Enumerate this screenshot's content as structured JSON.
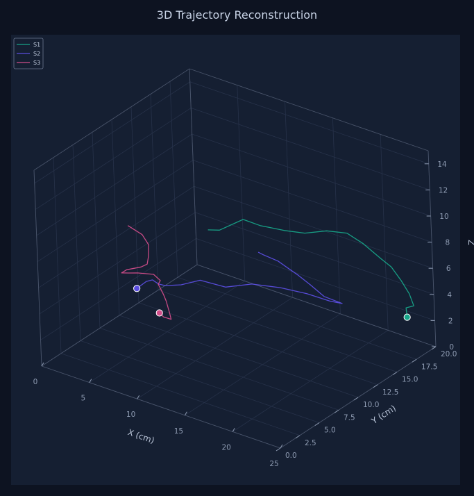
{
  "chart_data": {
    "type": "line",
    "subtype": "3d-trajectory",
    "title": "3D Trajectory Reconstruction",
    "xlabel": "X (cm)",
    "ylabel": "Y (cm)",
    "zlabel": "Z",
    "xlim": [
      0,
      25
    ],
    "ylim": [
      0,
      20
    ],
    "zlim": [
      0,
      15
    ],
    "x_ticks": [
      0,
      5,
      10,
      15,
      20,
      25
    ],
    "y_ticks": [
      "0.0",
      "2.5",
      "5.0",
      "7.5",
      "10.0",
      "12.5",
      "15.0",
      "17.5",
      "20.0"
    ],
    "z_ticks": [
      0,
      2,
      4,
      6,
      8,
      10,
      12,
      14
    ],
    "grid": true,
    "legend_position": "top-left",
    "series": [
      {
        "name": "S1",
        "color": "#17a589",
        "points": [
          [
            10.6,
            9.0,
            9.6
          ],
          [
            10.3,
            10.8,
            8.8
          ],
          [
            11.5,
            12.4,
            9.3
          ],
          [
            12.6,
            13.2,
            8.8
          ],
          [
            13.8,
            14.8,
            8.1
          ],
          [
            15.2,
            15.7,
            7.9
          ],
          [
            16.6,
            16.8,
            8.0
          ],
          [
            17.8,
            17.9,
            7.7
          ],
          [
            18.9,
            18.6,
            6.9
          ],
          [
            19.9,
            19.6,
            5.6
          ],
          [
            20.6,
            20.0,
            5.0
          ],
          [
            21.6,
            20.0,
            4.2
          ],
          [
            22.4,
            20.0,
            3.4
          ],
          [
            23.0,
            19.8,
            2.7
          ],
          [
            23.1,
            18.7,
            3.0
          ],
          [
            23.6,
            18.2,
            2.6
          ]
        ],
        "end": [
          23.6,
          18.2,
          2.6
        ]
      },
      {
        "name": "S2",
        "color": "#5b4ee0",
        "points": [
          [
            15.0,
            10.0,
            8.6
          ],
          [
            15.2,
            10.4,
            8.3
          ],
          [
            16.3,
            10.9,
            7.9
          ],
          [
            16.5,
            11.8,
            7.1
          ],
          [
            17.2,
            12.3,
            6.5
          ],
          [
            18.2,
            12.6,
            5.9
          ],
          [
            19.1,
            13.2,
            5.0
          ],
          [
            19.8,
            14.6,
            4.1
          ],
          [
            18.9,
            14.2,
            4.2
          ],
          [
            17.2,
            13.3,
            4.7
          ],
          [
            15.6,
            11.9,
            5.3
          ],
          [
            14.1,
            10.1,
            5.9
          ],
          [
            12.9,
            8.2,
            6.1
          ],
          [
            11.0,
            7.3,
            6.5
          ],
          [
            9.9,
            6.2,
            6.3
          ],
          [
            8.9,
            5.4,
            6.3
          ],
          [
            8.7,
            4.8,
            6.6
          ],
          [
            8.4,
            4.4,
            7.0
          ],
          [
            8.0,
            4.1,
            6.9
          ],
          [
            7.8,
            3.1,
            6.7
          ]
        ],
        "end": [
          7.8,
          3.1,
          6.7
        ]
      },
      {
        "name": "S3",
        "color": "#d14d8a",
        "points": [
          [
            5.5,
            5.0,
            10.2
          ],
          [
            6.3,
            5.8,
            9.4
          ],
          [
            6.7,
            6.1,
            8.6
          ],
          [
            6.8,
            5.9,
            7.8
          ],
          [
            6.8,
            5.7,
            7.3
          ],
          [
            6.4,
            5.4,
            7.1
          ],
          [
            5.7,
            4.4,
            7.1
          ],
          [
            5.4,
            4.1,
            6.9
          ],
          [
            5.9,
            4.4,
            6.9
          ],
          [
            6.5,
            4.8,
            6.9
          ],
          [
            7.6,
            5.5,
            6.8
          ],
          [
            8.3,
            5.5,
            6.5
          ],
          [
            8.4,
            5.1,
            6.4
          ],
          [
            9.0,
            5.0,
            5.8
          ],
          [
            9.6,
            4.6,
            5.6
          ],
          [
            9.9,
            4.6,
            4.8
          ],
          [
            10.3,
            4.3,
            4.5
          ],
          [
            10.1,
            3.6,
            4.9
          ],
          [
            10.1,
            3.1,
            5.4
          ]
        ],
        "end": [
          10.1,
          3.1,
          5.4
        ]
      }
    ]
  }
}
